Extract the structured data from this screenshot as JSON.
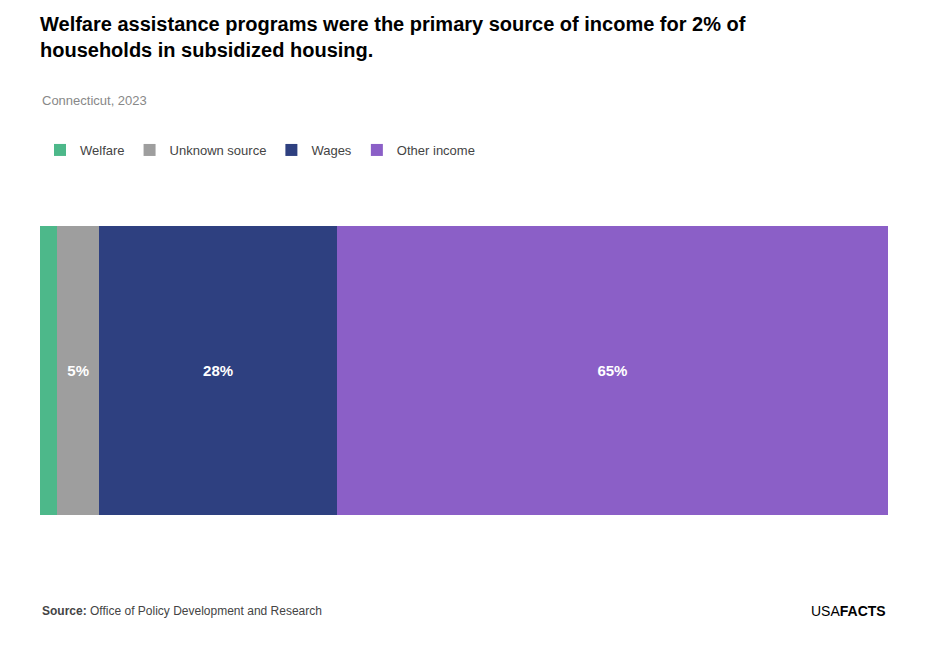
{
  "chart_data": {
    "type": "bar",
    "orientation": "horizontal",
    "stacked": true,
    "title": [
      "Welfare assistance programs were the primary source of income for 2% of",
      "households in subsidized housing."
    ],
    "subtitle": "Connecticut, 2023",
    "categories": [
      null
    ],
    "series": [
      {
        "name": "Welfare",
        "color": "#4db88a",
        "values": [
          2
        ],
        "value_labels": [
          null
        ]
      },
      {
        "name": "Unknown source",
        "color": "#9e9e9e",
        "values": [
          5
        ],
        "value_labels": [
          "5%"
        ]
      },
      {
        "name": "Wages",
        "color": "#2e4080",
        "values": [
          28
        ],
        "value_labels": [
          "28%"
        ]
      },
      {
        "name": "Other income",
        "color": "#8b5fc7",
        "values": [
          65
        ],
        "value_labels": [
          "65%"
        ]
      }
    ],
    "xlim": [
      0,
      100
    ],
    "data_labels": true,
    "tick_labels": false,
    "grid": false,
    "legend": "top",
    "source_label": "Source:",
    "source": "Office of Policy Development and Research",
    "logo": [
      "USA",
      "FACTS"
    ]
  }
}
